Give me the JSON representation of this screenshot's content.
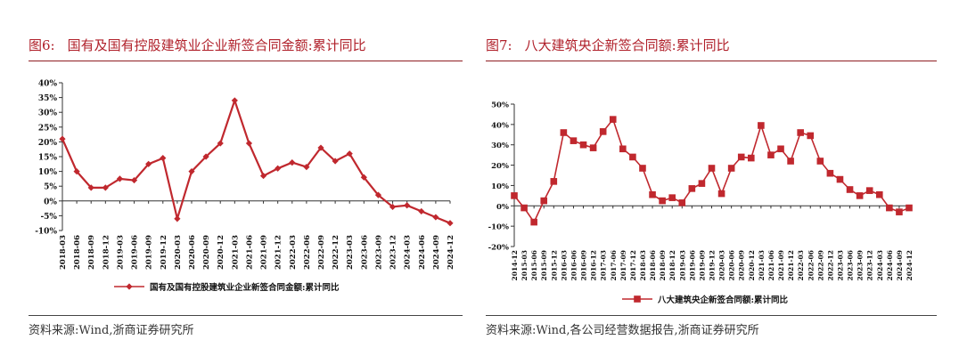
{
  "figures": [
    {
      "label": "图6:",
      "title": "国有及国有控股建筑业企业新签合同金额:累计同比",
      "source": "资料来源:Wind,浙商证券研究所"
    },
    {
      "label": "图7:",
      "title": "八大建筑央企新签合同额:累计同比",
      "source": "资料来源:Wind,各公司经营数据报告,浙商证券研究所"
    }
  ],
  "chart_data": [
    {
      "type": "line",
      "series_color": "#c0282e",
      "marker": "diamond",
      "ylim": [
        -10,
        40
      ],
      "y_ticks": [
        "40%",
        "35%",
        "30%",
        "25%",
        "20%",
        "15%",
        "10%",
        "5%",
        "0%",
        "-5%",
        "-10%"
      ],
      "x": [
        "2018-03",
        "2018-06",
        "2018-09",
        "2018-12",
        "2019-03",
        "2019-06",
        "2019-09",
        "2019-12",
        "2020-03",
        "2020-06",
        "2020-09",
        "2020-12",
        "2021-03",
        "2021-06",
        "2021-09",
        "2021-12",
        "2022-03",
        "2022-06",
        "2022-09",
        "2022-12",
        "2023-03",
        "2023-06",
        "2023-09",
        "2023-12",
        "2024-03",
        "2024-06",
        "2024-09",
        "2024-12"
      ],
      "series": [
        {
          "name": "国有及国有控股建筑业企业新签合同金额:累计同比",
          "values": [
            21,
            10,
            4.5,
            4.5,
            7.5,
            7,
            12.5,
            14.5,
            -6,
            10,
            15,
            19.5,
            34,
            19.5,
            8.5,
            11,
            13,
            11.5,
            18,
            13.5,
            16,
            8,
            2,
            -2,
            -1.5,
            -3.5,
            -5.5,
            -7.5
          ]
        }
      ],
      "legend_position": "bottom"
    },
    {
      "type": "line",
      "series_color": "#c0282e",
      "marker": "square",
      "ylim": [
        -20,
        50
      ],
      "y_ticks": [
        "50%",
        "40%",
        "30%",
        "20%",
        "10%",
        "0%",
        "-10%",
        "-20%"
      ],
      "x": [
        "2014-12",
        "2015-03",
        "2015-06",
        "2015-09",
        "2015-12",
        "2016-03",
        "2016-06",
        "2016-09",
        "2016-12",
        "2017-03",
        "2017-06",
        "2017-09",
        "2017-12",
        "2018-03",
        "2018-06",
        "2018-09",
        "2018-12",
        "2019-03",
        "2019-06",
        "2019-09",
        "2019-12",
        "2020-03",
        "2020-06",
        "2020-09",
        "2020-12",
        "2021-03",
        "2021-06",
        "2021-09",
        "2021-12",
        "2022-03",
        "2022-06",
        "2022-09",
        "2022-12",
        "2023-03",
        "2023-06",
        "2023-09",
        "2023-12",
        "2024-03",
        "2024-06",
        "2024-09",
        "2024-12"
      ],
      "series": [
        {
          "name": "八大建筑央企新签合同额:累计同比",
          "values": [
            5,
            -1,
            -8,
            2.5,
            12,
            36,
            32,
            30,
            28.5,
            36.5,
            42.5,
            28,
            24,
            18.5,
            5.5,
            2.5,
            4,
            1.5,
            8.5,
            11,
            18.5,
            6,
            18.5,
            24,
            23.5,
            39.5,
            25,
            28,
            22,
            36,
            34.5,
            22,
            16,
            13,
            8,
            5,
            7.5,
            5.5,
            -1,
            -3,
            -1
          ]
        }
      ],
      "legend_position": "bottom"
    }
  ]
}
